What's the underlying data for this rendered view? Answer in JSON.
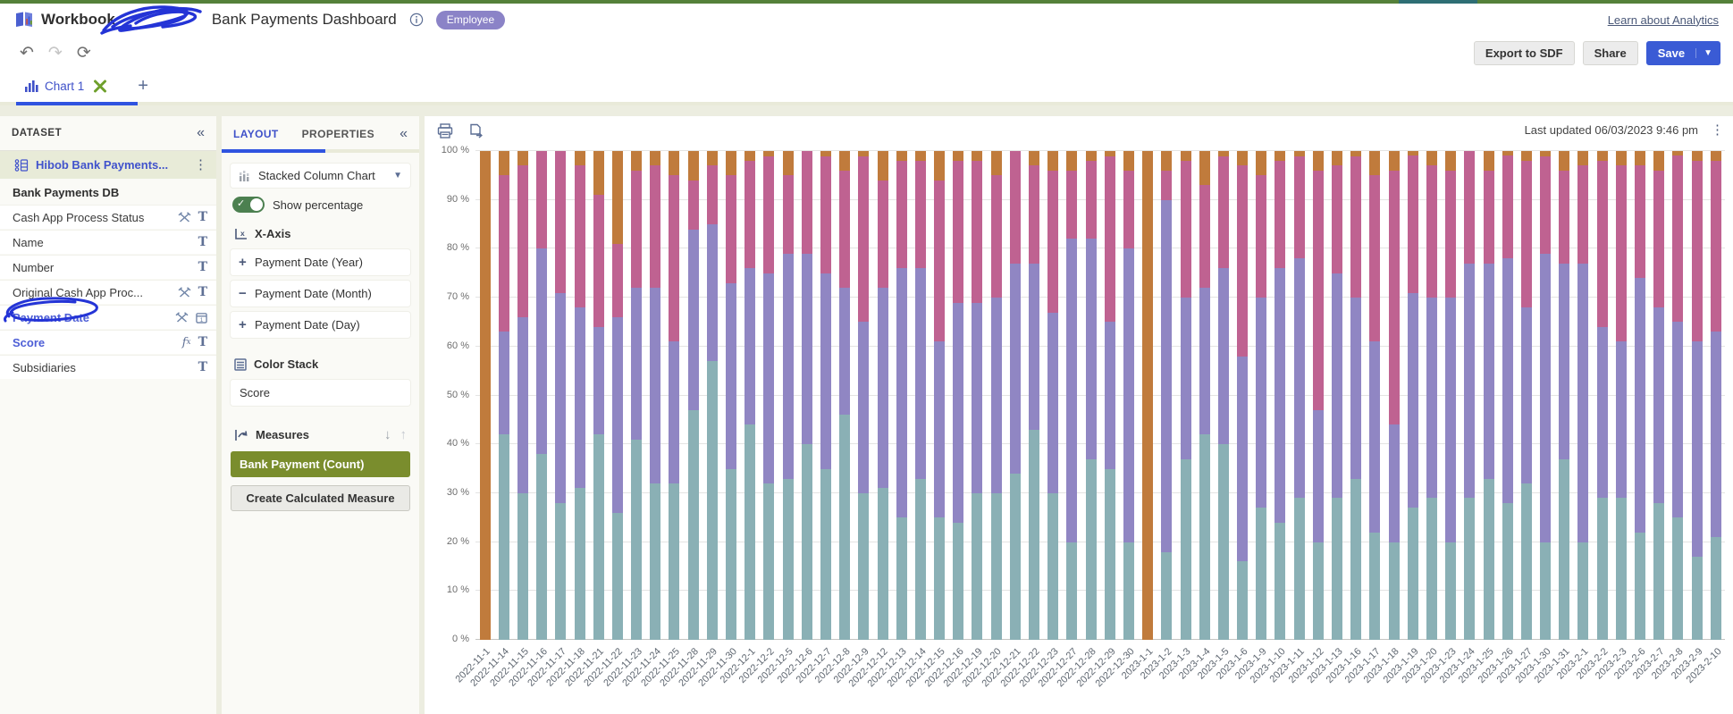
{
  "header": {
    "app_label": "Workbook",
    "title": "Bank Payments Dashboard",
    "badge": "Employee",
    "learn_link": "Learn about Analytics",
    "export_button": "Export to SDF",
    "share_button": "Share",
    "save_button": "Save"
  },
  "tabs": {
    "chart_tab": "Chart 1"
  },
  "dataset_panel": {
    "title": "DATASET",
    "source": "Hibob Bank Payments...",
    "table_name": "Bank Payments DB",
    "fields": [
      {
        "label": "Cash App Process Status",
        "tools": true,
        "fx": false,
        "type": "text",
        "highlight": false
      },
      {
        "label": "Name",
        "tools": false,
        "fx": false,
        "type": "text",
        "highlight": false
      },
      {
        "label": "Number",
        "tools": false,
        "fx": false,
        "type": "text",
        "highlight": false
      },
      {
        "label": "Original Cash App Proc...",
        "tools": true,
        "fx": false,
        "type": "text",
        "highlight": false
      },
      {
        "label": "Payment Date",
        "tools": true,
        "fx": false,
        "type": "date",
        "highlight": true
      },
      {
        "label": "Score",
        "tools": false,
        "fx": true,
        "type": "text",
        "highlight": true
      },
      {
        "label": "Subsidiaries",
        "tools": false,
        "fx": false,
        "type": "text",
        "highlight": false
      }
    ]
  },
  "layout_panel": {
    "tab_layout": "LAYOUT",
    "tab_properties": "PROPERTIES",
    "chart_type": "Stacked Column Chart",
    "show_percentage": "Show percentage",
    "x_axis_label": "X-Axis",
    "x_axis_fields": [
      {
        "op": "+",
        "label": "Payment Date  (Year)"
      },
      {
        "op": "−",
        "label": "Payment Date  (Month)"
      },
      {
        "op": "+",
        "label": "Payment Date  (Day)"
      }
    ],
    "color_stack_label": "Color Stack",
    "color_stack_field": "Score",
    "measures_label": "Measures",
    "measure_pill": "Bank Payment  (Count)",
    "create_measure_button": "Create Calculated Measure"
  },
  "chart_panel": {
    "last_updated": "Last updated 06/03/2023 9:46 pm"
  },
  "chart_data": {
    "type": "bar",
    "stacked": true,
    "percentage": true,
    "grid": true,
    "legend": "none",
    "ylim": [
      0,
      100
    ],
    "y_ticks": [
      "0 %",
      "10 %",
      "20 %",
      "30 %",
      "40 %",
      "50 %",
      "60 %",
      "70 %",
      "80 %",
      "90 %",
      "100 %"
    ],
    "categories": [
      "2022-11-1",
      "2022-11-14",
      "2022-11-15",
      "2022-11-16",
      "2022-11-17",
      "2022-11-18",
      "2022-11-21",
      "2022-11-22",
      "2022-11-23",
      "2022-11-24",
      "2022-11-25",
      "2022-11-28",
      "2022-11-29",
      "2022-11-30",
      "2022-12-1",
      "2022-12-2",
      "2022-12-5",
      "2022-12-6",
      "2022-12-7",
      "2022-12-8",
      "2022-12-9",
      "2022-12-12",
      "2022-12-13",
      "2022-12-14",
      "2022-12-15",
      "2022-12-16",
      "2022-12-19",
      "2022-12-20",
      "2022-12-21",
      "2022-12-22",
      "2022-12-23",
      "2022-12-27",
      "2022-12-28",
      "2022-12-29",
      "2022-12-30",
      "2023-1-1",
      "2023-1-2",
      "2023-1-3",
      "2023-1-4",
      "2023-1-5",
      "2023-1-6",
      "2023-1-9",
      "2023-1-10",
      "2023-1-11",
      "2023-1-12",
      "2023-1-13",
      "2023-1-16",
      "2023-1-17",
      "2023-1-18",
      "2023-1-19",
      "2023-1-20",
      "2023-1-23",
      "2023-1-24",
      "2023-1-25",
      "2023-1-26",
      "2023-1-27",
      "2023-1-30",
      "2023-1-31",
      "2023-2-1",
      "2023-2-2",
      "2023-2-3",
      "2023-2-6",
      "2023-2-7",
      "2023-2-8",
      "2023-2-9",
      "2023-2-10"
    ],
    "series": [
      {
        "name": "teal",
        "color": "#8AB0B5",
        "values": [
          0,
          42,
          30,
          38,
          28,
          31,
          42,
          26,
          41,
          32,
          32,
          47,
          57,
          35,
          44,
          32,
          33,
          40,
          35,
          46,
          30,
          31,
          25,
          33,
          25,
          24,
          30,
          30,
          34,
          43,
          30,
          20,
          37,
          35,
          20,
          0,
          18,
          37,
          42,
          40,
          16,
          27,
          24,
          29,
          20,
          29,
          33,
          22,
          20,
          27,
          29,
          20,
          29,
          33,
          28,
          32,
          20,
          37,
          20,
          29,
          29,
          22,
          28,
          25,
          17,
          21
        ]
      },
      {
        "name": "purple",
        "color": "#9086C3",
        "values": [
          0,
          21,
          36,
          42,
          43,
          37,
          22,
          40,
          31,
          40,
          29,
          37,
          28,
          38,
          32,
          43,
          46,
          39,
          40,
          26,
          35,
          41,
          51,
          43,
          36,
          45,
          39,
          40,
          43,
          34,
          37,
          62,
          45,
          30,
          60,
          0,
          72,
          33,
          30,
          36,
          42,
          43,
          52,
          49,
          27,
          46,
          37,
          39,
          24,
          44,
          41,
          50,
          48,
          44,
          50,
          36,
          59,
          40,
          57,
          35,
          32,
          52,
          40,
          40,
          44,
          42
        ]
      },
      {
        "name": "pink",
        "color": "#BF6291",
        "values": [
          0,
          32,
          31,
          20,
          29,
          29,
          27,
          15,
          24,
          25,
          34,
          10,
          12,
          22,
          22,
          24,
          16,
          21,
          24,
          24,
          34,
          22,
          22,
          22,
          33,
          29,
          29,
          25,
          23,
          20,
          29,
          14,
          16,
          34,
          16,
          0,
          6,
          28,
          21,
          23,
          39,
          25,
          22,
          21,
          49,
          22,
          29,
          34,
          52,
          28,
          27,
          26,
          23,
          19,
          21,
          30,
          20,
          19,
          20,
          34,
          36,
          23,
          28,
          34,
          37,
          35
        ]
      },
      {
        "name": "orange",
        "color": "#C07B3C",
        "values": [
          100,
          5,
          3,
          0,
          0,
          3,
          9,
          19,
          4,
          3,
          5,
          6,
          3,
          5,
          2,
          1,
          5,
          0,
          1,
          4,
          1,
          6,
          2,
          2,
          6,
          2,
          2,
          5,
          0,
          3,
          4,
          4,
          2,
          1,
          4,
          100,
          4,
          2,
          7,
          1,
          3,
          5,
          2,
          1,
          4,
          3,
          1,
          5,
          4,
          1,
          3,
          4,
          0,
          4,
          1,
          2,
          1,
          4,
          3,
          2,
          3,
          3,
          4,
          1,
          2,
          2
        ]
      }
    ],
    "title": "",
    "xlabel": "",
    "ylabel": ""
  },
  "annotations": {
    "ink_color": "#2434D6",
    "green_x_color": "#6FA02C"
  }
}
